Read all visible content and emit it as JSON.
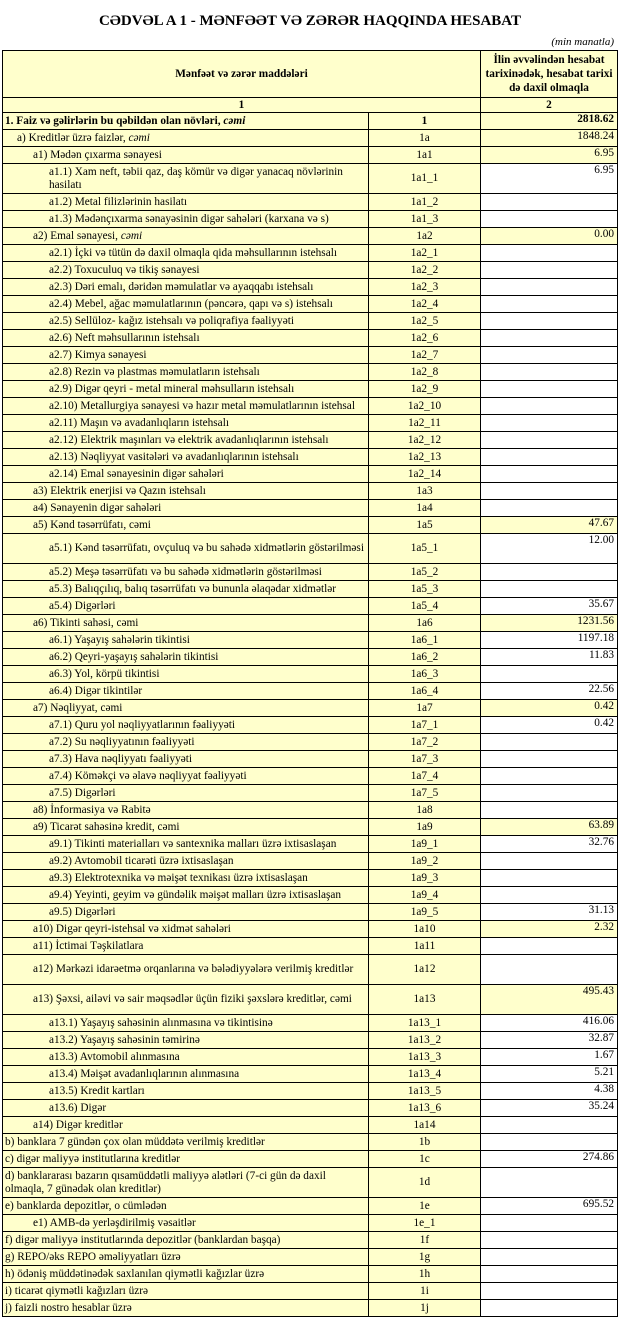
{
  "title": "CƏDVƏL A 1 - MƏNFƏƏT VƏ ZƏRƏR HAQQINDA HESABAT",
  "unit": "(min manatla)",
  "header": {
    "col_items": "Mənfəət və zərər maddələri",
    "col_value": "İlin əvvəlindən hesabat tarixinədək, hesabat tarixi də daxil olmaqla",
    "num1": "1",
    "num2": "2"
  },
  "colors": {
    "cell_highlight": "#ffffcc",
    "cell_plain": "#ffffff",
    "border": "#000000"
  },
  "rows": [
    {
      "label": "1. Faiz və gəlirlərin bu qəbildən olan növləri, ",
      "em": "cəmi",
      "code": "1",
      "value": "2818.62",
      "level": 0,
      "bold": true,
      "hl": true
    },
    {
      "label": "a) Kreditlər üzrə faizlər, ",
      "em": "cəmi",
      "code": "1a",
      "value": "1848.24",
      "level": 1,
      "hl": true
    },
    {
      "label": "a1) Mədən çıxarma sənayesi",
      "code": "1a1",
      "value": "6.95",
      "level": 2,
      "hl": true
    },
    {
      "label": "a1.1) Xam neft, təbii qaz, daş kömür və digər yanacaq növlərinin hasilatı",
      "code": "1a1_1",
      "value": "6.95",
      "level": 3,
      "two": true
    },
    {
      "label": "a1.2) Metal filizlərinin hasilatı",
      "code": "1a1_2",
      "value": "",
      "level": 3
    },
    {
      "label": "a1.3) Mədənçıxarma sənayəsinin digər sahələri (karxana və s)",
      "code": "1a1_3",
      "value": "",
      "level": 3
    },
    {
      "label": "a2) Emal sənayesi, ",
      "em": "cəmi",
      "code": "1a2",
      "value": "0.00",
      "level": 2,
      "hl": true
    },
    {
      "label": "a2.1) İçki və tütün də daxil olmaqla qida məhsullarının istehsalı",
      "code": "1a2_1",
      "value": "",
      "level": 3
    },
    {
      "label": "a2.2) Toxuculuq və tikiş sənayesi",
      "code": "1a2_2",
      "value": "",
      "level": 3
    },
    {
      "label": "a2.3) Dəri emalı, dəridən məmulatlar və ayaqqabı istehsalı",
      "code": "1a2_3",
      "value": "",
      "level": 3
    },
    {
      "label": "a2.4) Mebel, ağac məmulatlarının (pəncərə, qapı və s) istehsalı",
      "code": "1a2_4",
      "value": "",
      "level": 3
    },
    {
      "label": "a2.5) Sellüloz- kağız istehsalı və poliqrafiya fəaliyyəti",
      "code": "1a2_5",
      "value": "",
      "level": 3
    },
    {
      "label": "a2.6) Neft məhsullarının istehsalı",
      "code": "1a2_6",
      "value": "",
      "level": 3
    },
    {
      "label": "a2.7) Kimya sənayesi",
      "code": "1a2_7",
      "value": "",
      "level": 3
    },
    {
      "label": "a2.8) Rezin və plastmas məmulatların istehsalı",
      "code": "1a2_8",
      "value": "",
      "level": 3
    },
    {
      "label": "a2.9) Digər qeyri - metal mineral məhsulların istehsalı",
      "code": "1a2_9",
      "value": "",
      "level": 3
    },
    {
      "label": "a2.10) Metallurgiya sənayesi və hazır metal məmulatlarının istehsal",
      "code": "1a2_10",
      "value": "",
      "level": 3
    },
    {
      "label": "a2.11) Maşın və avadanlıqların istehsalı",
      "code": "1a2_11",
      "value": "",
      "level": 3
    },
    {
      "label": "a2.12) Elektrik maşınları və elektrik avadanlıqlarının istehsalı",
      "code": "1a2_12",
      "value": "",
      "level": 3
    },
    {
      "label": "a2.13) Nəqliyyat vasitələri və avadanlıqlarının istehsalı",
      "code": "1a2_13",
      "value": "",
      "level": 3
    },
    {
      "label": "a2.14) Emal sənayesinin digər sahələri",
      "code": "1a2_14",
      "value": "",
      "level": 3
    },
    {
      "label": "a3) Elektrik enerjisi və Qazın istehsalı",
      "code": "1a3",
      "value": "",
      "level": 2
    },
    {
      "label": "a4) Sənayenin digər sahələri",
      "code": "1a4",
      "value": "",
      "level": 2
    },
    {
      "label": "a5) Kənd təsərrüfatı, cəmi",
      "code": "1a5",
      "value": "47.67",
      "level": 2,
      "hl": true
    },
    {
      "label": "a5.1) Kənd təsərrüfatı, ovçuluq və bu sahədə xidmətlərin göstərilməsi",
      "code": "1a5_1",
      "value": "12.00",
      "level": 3,
      "two": true
    },
    {
      "label": "a5.2) Meşə təsərrüfatı və bu sahədə xidmətlərin göstərilməsi",
      "code": "1a5_2",
      "value": "",
      "level": 3
    },
    {
      "label": "a5.3) Balıqçılıq, balıq təsərrüfatı və bununla əlaqədar xidmətlər",
      "code": "1a5_3",
      "value": "",
      "level": 3
    },
    {
      "label": "a5.4) Digərləri",
      "code": "1a5_4",
      "value": "35.67",
      "level": 3
    },
    {
      "label": "a6) Tikinti sahəsi, cəmi",
      "code": "1a6",
      "value": "1231.56",
      "level": 2,
      "hl": true
    },
    {
      "label": "a6.1) Yaşayış sahələrin tikintisi",
      "code": "1a6_1",
      "value": "1197.18",
      "level": 3
    },
    {
      "label": "a6.2) Qeyri-yaşayış sahələrin tikintisi",
      "code": "1a6_2",
      "value": "11.83",
      "level": 3
    },
    {
      "label": "a6.3) Yol, körpü tikintisi",
      "code": "1a6_3",
      "value": "",
      "level": 3
    },
    {
      "label": "a6.4) Digər tikintilər",
      "code": "1a6_4",
      "value": "22.56",
      "level": 3
    },
    {
      "label": "a7) Nəqliyyat, cəmi",
      "code": "1a7",
      "value": "0.42",
      "level": 2,
      "hl": true
    },
    {
      "label": "a7.1) Quru yol nəqliyyatlarının fəaliyyəti",
      "code": "1a7_1",
      "value": "0.42",
      "level": 3
    },
    {
      "label": "a7.2) Su nəqliyyatının fəaliyyəti",
      "code": "1a7_2",
      "value": "",
      "level": 3
    },
    {
      "label": "a7.3) Hava nəqliyyatı fəaliyyəti",
      "code": "1a7_3",
      "value": "",
      "level": 3
    },
    {
      "label": "a7.4) Köməkçi və əlavə nəqliyyat fəaliyyəti",
      "code": "1a7_4",
      "value": "",
      "level": 3
    },
    {
      "label": "a7.5) Digərləri",
      "code": "1a7_5",
      "value": "",
      "level": 3
    },
    {
      "label": "a8)  İnformasiya və Rabitə",
      "code": "1a8",
      "value": "",
      "level": 2
    },
    {
      "label": "a9) Ticarət sahəsinə kredit, cəmi",
      "code": "1a9",
      "value": "63.89",
      "level": 2,
      "hl": true
    },
    {
      "label": "a9.1) Tikinti materialları və santexnika malları üzrə ixtisaslaşan",
      "code": "1a9_1",
      "value": "32.76",
      "level": 3
    },
    {
      "label": "a9.2) Avtomobil ticarəti üzrə ixtisaslaşan",
      "code": "1a9_2",
      "value": "",
      "level": 3
    },
    {
      "label": "a9.3) Elektrotexnika və məişət texnikası üzrə ixtisaslaşan",
      "code": "1a9_3",
      "value": "",
      "level": 3
    },
    {
      "label": "a9.4) Yeyinti, geyim və gündəlik məişət malları üzrə ixtisaslaşan",
      "code": "1a9_4",
      "value": "",
      "level": 3
    },
    {
      "label": "a9.5) Digərləri",
      "code": "1a9_5",
      "value": "31.13",
      "level": 3
    },
    {
      "label": "a10) Digər qeyri-istehsal və xidmət sahələri",
      "code": "1a10",
      "value": "2.32",
      "level": 2,
      "hl": true
    },
    {
      "label": "a11) İctimai Təşkilatlara",
      "code": "1a11",
      "value": "",
      "level": 2
    },
    {
      "label": "a12) Mərkəzi  idarəetmə orqanlarına və bələdiyyələrə verilmiş kreditlər",
      "code": "1a12",
      "value": "",
      "level": 2,
      "two": true
    },
    {
      "label": "a13) Şəxsi, ailəvi və sair məqsədlər üçün fiziki şəxslərə kreditlər, cəmi",
      "code": "1a13",
      "value": "495.43",
      "level": 2,
      "two": true,
      "hl": true
    },
    {
      "label": "a13.1) Yaşayış sahəsinin alınmasına və tikintisinə",
      "code": "1a13_1",
      "value": "416.06",
      "level": 3
    },
    {
      "label": "a13.2) Yaşayış sahəsinin təmirinə",
      "code": "1a13_2",
      "value": "32.87",
      "level": 3
    },
    {
      "label": "a13.3) Avtomobil alınmasına",
      "code": "1a13_3",
      "value": "1.67",
      "level": 3
    },
    {
      "label": "a13.4) Məişət avadanlıqlarının alınmasına",
      "code": "1a13_4",
      "value": "5.21",
      "level": 3
    },
    {
      "label": "a13.5) Kredit kartları",
      "code": "1a13_5",
      "value": "4.38",
      "level": 3
    },
    {
      "label": "a13.6) Digər",
      "code": "1a13_6",
      "value": "35.24",
      "level": 3
    },
    {
      "label": "a14) Digər kreditlər",
      "code": "1a14",
      "value": "",
      "level": 2
    },
    {
      "label": "b) banklara 7 gündən çox olan müddətə verilmiş kreditlər",
      "code": "1b",
      "value": "",
      "level": 0
    },
    {
      "label": "c) digər maliyyə institutlarına kreditlər",
      "code": "1c",
      "value": "274.86",
      "level": 0
    },
    {
      "label": "d) banklararası bazarın qısamüddətli maliyyə alətləri (7-ci gün də daxil olmaqla, 7 günədək olan kreditlər)",
      "code": "1d",
      "value": "",
      "level": 0,
      "two": true
    },
    {
      "label": "e) banklarda depozitlər, o cümlədən",
      "code": "1e",
      "value": "695.52",
      "level": 0
    },
    {
      "label": "e1)  AMB-də yerləşdirilmiş vəsaitlər",
      "code": "1e_1",
      "value": "",
      "level": 2
    },
    {
      "label": "f) digər maliyyə institutlarında depozitlər (banklardan başqa)",
      "code": "1f",
      "value": "",
      "level": 0
    },
    {
      "label": "g) REPO/əks REPO əməliyyatları üzrə",
      "code": "1g",
      "value": "",
      "level": 0
    },
    {
      "label": "h) ödəniş müddətinədək saxlanılan qiymətli kağızlar üzrə",
      "code": "1h",
      "value": "",
      "level": 0
    },
    {
      "label": "i) ticarət qiymətli kağızları üzrə",
      "code": "1i",
      "value": "",
      "level": 0
    },
    {
      "label": "j) faizli nostro hesablar üzrə",
      "code": "1j",
      "value": "",
      "level": 0
    }
  ]
}
